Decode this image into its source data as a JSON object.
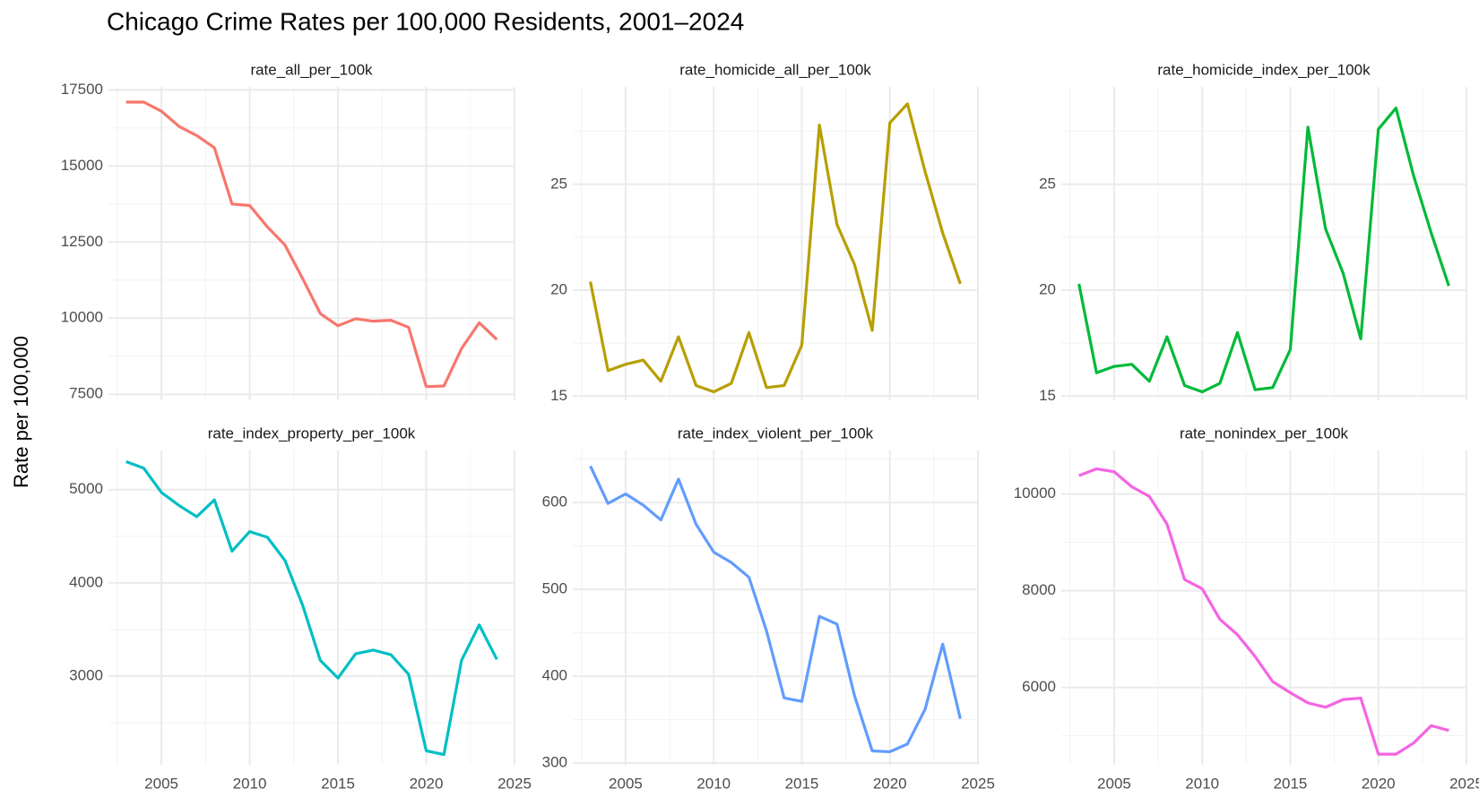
{
  "title": "Chicago Crime Rates per 100,000 Residents, 2001–2024",
  "y_label": "Rate per 100,000",
  "chart_data": [
    {
      "type": "line",
      "title": "rate_all_per_100k",
      "color": "#F8766D",
      "x": [
        2003,
        2004,
        2005,
        2006,
        2007,
        2008,
        2009,
        2010,
        2011,
        2012,
        2013,
        2014,
        2015,
        2016,
        2017,
        2018,
        2019,
        2020,
        2021,
        2022,
        2023,
        2024
      ],
      "values": [
        17100,
        17100,
        16800,
        16300,
        16000,
        15600,
        13750,
        13700,
        13000,
        12400,
        11300,
        10150,
        9750,
        9980,
        9900,
        9930,
        9700,
        7750,
        7770,
        9000,
        9850,
        9300
      ],
      "xlim": [
        2002,
        2025
      ],
      "xticks": [
        2005,
        2010,
        2015,
        2020,
        2025
      ],
      "ylim": [
        7300,
        17600
      ],
      "yticks": [
        7500,
        10000,
        12500,
        15000,
        17500
      ],
      "grid": true
    },
    {
      "type": "line",
      "title": "rate_homicide_all_per_100k",
      "color": "#B79F00",
      "x": [
        2003,
        2004,
        2005,
        2006,
        2007,
        2008,
        2009,
        2010,
        2011,
        2012,
        2013,
        2014,
        2015,
        2016,
        2017,
        2018,
        2019,
        2020,
        2021,
        2022,
        2023,
        2024
      ],
      "values": [
        20.4,
        16.2,
        16.5,
        16.7,
        15.7,
        17.8,
        15.5,
        15.2,
        15.6,
        18.0,
        15.4,
        15.5,
        17.4,
        27.8,
        23.1,
        21.2,
        18.1,
        27.9,
        28.8,
        25.6,
        22.7,
        20.3
      ],
      "xlim": [
        2002,
        2025
      ],
      "xticks": [
        2005,
        2010,
        2015,
        2020,
        2025
      ],
      "ylim": [
        14.8,
        29.6
      ],
      "yticks": [
        15,
        20,
        25
      ],
      "grid": true
    },
    {
      "type": "line",
      "title": "rate_homicide_index_per_100k",
      "color": "#00BA38",
      "x": [
        2003,
        2004,
        2005,
        2006,
        2007,
        2008,
        2009,
        2010,
        2011,
        2012,
        2013,
        2014,
        2015,
        2016,
        2017,
        2018,
        2019,
        2020,
        2021,
        2022,
        2023,
        2024
      ],
      "values": [
        20.3,
        16.1,
        16.4,
        16.5,
        15.7,
        17.8,
        15.5,
        15.2,
        15.6,
        18.0,
        15.3,
        15.4,
        17.2,
        27.7,
        22.9,
        20.8,
        17.7,
        27.6,
        28.6,
        25.4,
        22.7,
        20.2
      ],
      "xlim": [
        2002,
        2025
      ],
      "xticks": [
        2005,
        2010,
        2015,
        2020,
        2025
      ],
      "ylim": [
        14.8,
        29.6
      ],
      "yticks": [
        15,
        20,
        25
      ],
      "grid": true
    },
    {
      "type": "line",
      "title": "rate_index_property_per_100k",
      "color": "#00BFC4",
      "x": [
        2003,
        2004,
        2005,
        2006,
        2007,
        2008,
        2009,
        2010,
        2011,
        2012,
        2013,
        2014,
        2015,
        2016,
        2017,
        2018,
        2019,
        2020,
        2021,
        2022,
        2023,
        2024
      ],
      "values": [
        5300,
        5230,
        4970,
        4830,
        4710,
        4890,
        4340,
        4550,
        4490,
        4240,
        3760,
        3170,
        2980,
        3240,
        3280,
        3230,
        3020,
        2200,
        2160,
        3170,
        3550,
        3180
      ],
      "xlim": [
        2002,
        2025
      ],
      "xticks": [
        2005,
        2010,
        2015,
        2020,
        2025
      ],
      "ylim": [
        2050,
        5420
      ],
      "yticks": [
        3000,
        4000,
        5000
      ],
      "grid": true
    },
    {
      "type": "line",
      "title": "rate_index_violent_per_100k",
      "color": "#619CFF",
      "x": [
        2003,
        2004,
        2005,
        2006,
        2007,
        2008,
        2009,
        2010,
        2011,
        2012,
        2013,
        2014,
        2015,
        2016,
        2017,
        2018,
        2019,
        2020,
        2021,
        2022,
        2023,
        2024
      ],
      "values": [
        642,
        599,
        610,
        597,
        580,
        627,
        575,
        543,
        531,
        514,
        452,
        375,
        371,
        469,
        460,
        377,
        314,
        313,
        322,
        362,
        437,
        351
      ],
      "xlim": [
        2002,
        2025
      ],
      "xticks": [
        2005,
        2010,
        2015,
        2020,
        2025
      ],
      "ylim": [
        298,
        660
      ],
      "yticks": [
        300,
        400,
        500,
        600
      ],
      "grid": true
    },
    {
      "type": "line",
      "title": "rate_nonindex_per_100k",
      "color": "#F564E3",
      "x": [
        2003,
        2004,
        2005,
        2006,
        2007,
        2008,
        2009,
        2010,
        2011,
        2012,
        2013,
        2014,
        2015,
        2016,
        2017,
        2018,
        2019,
        2020,
        2021,
        2022,
        2023,
        2024
      ],
      "values": [
        10380,
        10520,
        10460,
        10150,
        9950,
        9380,
        8230,
        8040,
        7410,
        7090,
        6640,
        6120,
        5890,
        5680,
        5590,
        5750,
        5780,
        4620,
        4620,
        4850,
        5210,
        5110
      ],
      "xlim": [
        2002,
        2025
      ],
      "xticks": [
        2005,
        2010,
        2015,
        2020,
        2025
      ],
      "ylim": [
        4400,
        10900
      ],
      "yticks": [
        6000,
        8000,
        10000
      ],
      "grid": true
    }
  ]
}
